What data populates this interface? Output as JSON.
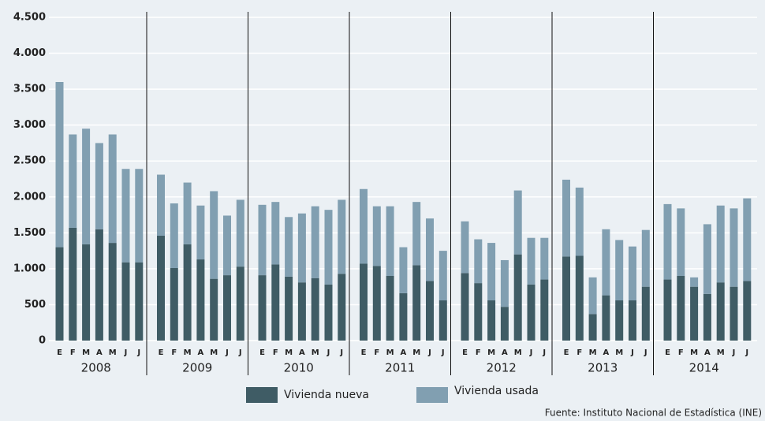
{
  "chart_data": {
    "type": "stacked_bar",
    "categories": [
      "E",
      "F",
      "M",
      "A",
      "M",
      "J",
      "J",
      "E",
      "F",
      "M",
      "A",
      "M",
      "J",
      "J",
      "E",
      "F",
      "M",
      "A",
      "M",
      "J",
      "J",
      "E",
      "F",
      "M",
      "A",
      "M",
      "J",
      "J",
      "E",
      "F",
      "M",
      "A",
      "M",
      "J",
      "J",
      "E",
      "F",
      "M",
      "A",
      "M",
      "J",
      "J",
      "E",
      "F",
      "M",
      "A",
      "M",
      "J",
      "J"
    ],
    "groups": [
      "2008",
      "2009",
      "2010",
      "2011",
      "2012",
      "2013",
      "2014"
    ],
    "series": [
      {
        "name": "Vivienda nueva",
        "color": "#3f5c65",
        "values": [
          1300,
          1570,
          1340,
          1550,
          1360,
          1090,
          1090,
          1460,
          1010,
          1340,
          1130,
          860,
          910,
          1030,
          910,
          1060,
          890,
          810,
          870,
          780,
          930,
          1070,
          1040,
          900,
          660,
          1050,
          830,
          560,
          940,
          800,
          560,
          470,
          1200,
          780,
          850,
          1170,
          1180,
          370,
          630,
          560,
          560,
          750,
          850,
          900,
          750,
          650,
          810,
          750,
          830
        ]
      },
      {
        "name": "Vivienda usada",
        "color": "#819fb1",
        "values": [
          2300,
          1300,
          1610,
          1200,
          1510,
          1300,
          1300,
          850,
          900,
          860,
          750,
          1220,
          830,
          930,
          980,
          870,
          830,
          960,
          1000,
          1040,
          1030,
          1040,
          830,
          970,
          640,
          880,
          870,
          690,
          720,
          610,
          800,
          650,
          890,
          650,
          580,
          1070,
          950,
          510,
          920,
          840,
          750,
          790,
          1050,
          940,
          130,
          970,
          1070,
          1090,
          1150
        ]
      }
    ],
    "ylim": [
      0,
      4500
    ],
    "yticks": [
      0,
      500,
      {
        "value": 1000,
        "label": "1.000"
      },
      {
        "value": 1500,
        "label": "1.500"
      },
      {
        "value": 2000,
        "label": "2.000"
      },
      {
        "value": 2500,
        "label": "2.500"
      },
      {
        "value": 3000,
        "label": "3.000"
      },
      {
        "value": 3500,
        "label": "3.500"
      },
      {
        "value": 4000,
        "label": "4.000"
      },
      {
        "value": 4500,
        "label": "4.500"
      }
    ],
    "grid": true,
    "source": "Fuente: Instituto Nacional de Estadística (INE)"
  }
}
